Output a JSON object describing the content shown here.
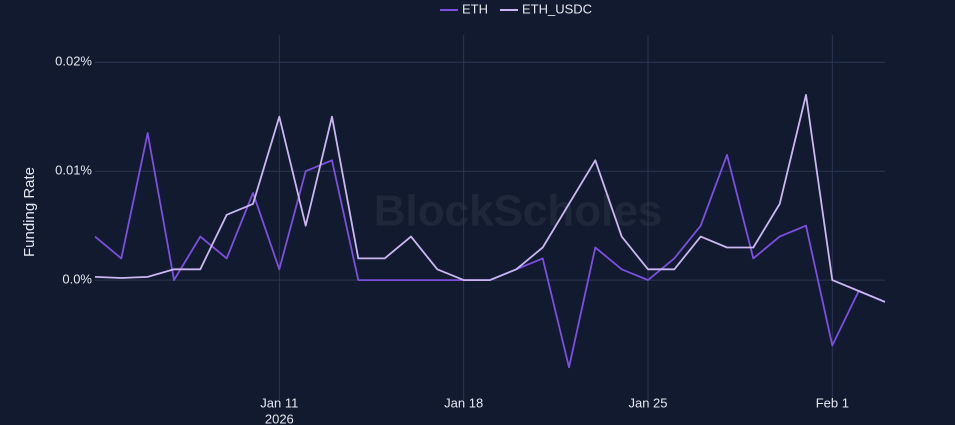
{
  "chart_data": {
    "type": "line",
    "watermark": "BlockScholes",
    "y_label": "Funding Rate",
    "x": [
      "2026-01-04",
      "2026-01-05",
      "2026-01-06",
      "2026-01-07",
      "2026-01-08",
      "2026-01-09",
      "2026-01-10",
      "2026-01-11",
      "2026-01-12",
      "2026-01-13",
      "2026-01-14",
      "2026-01-15",
      "2026-01-16",
      "2026-01-17",
      "2026-01-18",
      "2026-01-19",
      "2026-01-20",
      "2026-01-21",
      "2026-01-22",
      "2026-01-23",
      "2026-01-24",
      "2026-01-25",
      "2026-01-26",
      "2026-01-27",
      "2026-01-28",
      "2026-01-29",
      "2026-01-30",
      "2026-01-31",
      "2026-02-01",
      "2026-02-02",
      "2026-02-03"
    ],
    "series": [
      {
        "name": "ETH",
        "color": "#7c4fe0",
        "values": [
          0.004,
          0.002,
          0.0135,
          0.0,
          0.004,
          0.002,
          0.008,
          0.001,
          0.01,
          0.011,
          0.0,
          0.0,
          0.0,
          0.0,
          0.0,
          0.0,
          0.001,
          0.002,
          -0.008,
          0.003,
          0.001,
          0.0,
          0.002,
          0.005,
          0.0115,
          0.002,
          0.004,
          0.005,
          -0.006,
          -0.001,
          -0.002
        ]
      },
      {
        "name": "ETH_USDC",
        "color": "#cbb6f2",
        "values": [
          0.0003,
          0.0002,
          0.0003,
          0.001,
          0.001,
          0.006,
          0.007,
          0.015,
          0.005,
          0.015,
          0.002,
          0.002,
          0.004,
          0.001,
          0.0,
          0.0,
          0.001,
          0.003,
          0.007,
          0.011,
          0.004,
          0.001,
          0.001,
          0.004,
          0.003,
          0.003,
          0.007,
          0.017,
          0.0,
          -0.001,
          -0.002
        ]
      }
    ],
    "xlim": [
      "2026-01-04",
      "2026-02-03"
    ],
    "xticks": [
      {
        "value": "2026-01-11",
        "label": "Jan 11"
      },
      {
        "value": "2026-01-18",
        "label": "Jan 18"
      },
      {
        "value": "2026-01-25",
        "label": "Jan 25"
      },
      {
        "value": "2026-02-01",
        "label": "Feb 1"
      }
    ],
    "x_year_label": "2026",
    "ylim": [
      -0.011,
      0.0225
    ],
    "yticks": [
      {
        "value": 0,
        "label": "0.0%"
      },
      {
        "value": 0.01,
        "label": "0.01%"
      },
      {
        "value": 0.02,
        "label": "0.02%"
      }
    ],
    "grid": true,
    "legend": "top"
  }
}
